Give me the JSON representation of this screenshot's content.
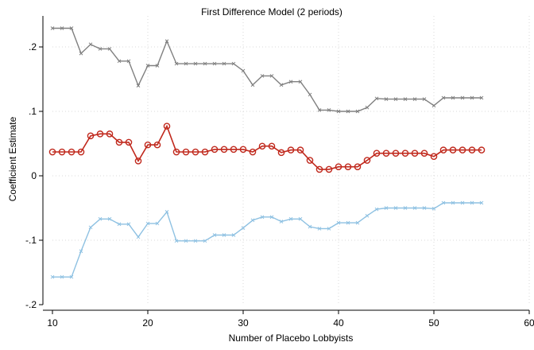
{
  "chart_data": {
    "type": "line",
    "title": "First Difference Model (2 periods)",
    "xlabel": "Number of Placebo Lobbyists",
    "ylabel": "Coefficient Estimate",
    "xlim": [
      10,
      60
    ],
    "ylim": [
      -0.2,
      0.2
    ],
    "xticks": [
      10,
      20,
      30,
      40,
      50,
      60
    ],
    "xtick_labels": [
      "10",
      "20",
      "30",
      "40",
      "50",
      "60"
    ],
    "yticks": [
      -0.2,
      -0.1,
      0,
      0.1,
      0.2
    ],
    "ytick_labels": [
      "-.2",
      "-.1",
      "0",
      ".1",
      ".2"
    ],
    "grid": true,
    "x": [
      10,
      11,
      12,
      13,
      14,
      15,
      16,
      17,
      18,
      19,
      20,
      21,
      22,
      23,
      24,
      25,
      26,
      27,
      28,
      29,
      30,
      31,
      32,
      33,
      34,
      35,
      36,
      37,
      38,
      39,
      40,
      41,
      42,
      43,
      44,
      45,
      46,
      47,
      48,
      49,
      50,
      51,
      52,
      53,
      54,
      55
    ],
    "series": [
      {
        "role": "upper",
        "color": "#808080",
        "marker": "x",
        "values": [
          0.229,
          0.229,
          0.229,
          0.19,
          0.204,
          0.197,
          0.197,
          0.178,
          0.178,
          0.14,
          0.171,
          0.171,
          0.209,
          0.174,
          0.174,
          0.174,
          0.174,
          0.174,
          0.174,
          0.174,
          0.163,
          0.141,
          0.155,
          0.155,
          0.141,
          0.146,
          0.146,
          0.126,
          0.102,
          0.102,
          0.1,
          0.1,
          0.1,
          0.106,
          0.12,
          0.119,
          0.119,
          0.119,
          0.119,
          0.119,
          0.109,
          0.121,
          0.121,
          0.121,
          0.121,
          0.121
        ]
      },
      {
        "role": "estimate",
        "color": "#c0281c",
        "marker": "o",
        "values": [
          0.037,
          0.037,
          0.037,
          0.037,
          0.062,
          0.065,
          0.065,
          0.052,
          0.052,
          0.023,
          0.048,
          0.048,
          0.077,
          0.037,
          0.037,
          0.037,
          0.037,
          0.041,
          0.041,
          0.041,
          0.041,
          0.037,
          0.046,
          0.046,
          0.036,
          0.04,
          0.04,
          0.024,
          0.01,
          0.01,
          0.014,
          0.014,
          0.014,
          0.024,
          0.035,
          0.035,
          0.035,
          0.035,
          0.035,
          0.035,
          0.03,
          0.04,
          0.04,
          0.04,
          0.04,
          0.04
        ]
      },
      {
        "role": "lower",
        "color": "#8ec1e2",
        "marker": "x",
        "values": [
          -0.157,
          -0.157,
          -0.157,
          -0.117,
          -0.08,
          -0.067,
          -0.067,
          -0.075,
          -0.075,
          -0.095,
          -0.074,
          -0.074,
          -0.056,
          -0.101,
          -0.101,
          -0.101,
          -0.101,
          -0.092,
          -0.092,
          -0.092,
          -0.081,
          -0.069,
          -0.064,
          -0.064,
          -0.071,
          -0.067,
          -0.067,
          -0.079,
          -0.082,
          -0.082,
          -0.073,
          -0.073,
          -0.073,
          -0.062,
          -0.052,
          -0.05,
          -0.05,
          -0.05,
          -0.05,
          -0.05,
          -0.051,
          -0.042,
          -0.042,
          -0.042,
          -0.042,
          -0.042
        ]
      }
    ]
  }
}
